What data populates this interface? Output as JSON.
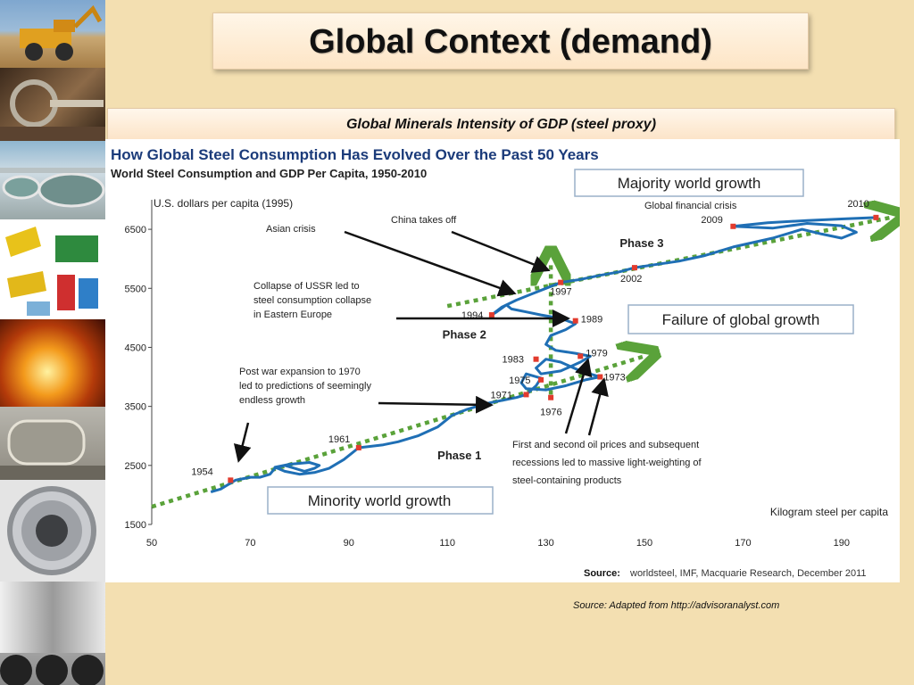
{
  "slide": {
    "title": "Global Context (demand)",
    "subtitle": "Global Minerals Intensity of GDP (steel proxy)",
    "source_note": "Source: Adapted from http://advisoranalyst.com"
  },
  "sidebar": {
    "images": [
      "mining-truck-icon",
      "bucket-wheel-excavator-icon",
      "thickener-tanks-icon",
      "mineral-processing-equipment-icon",
      "molten-steel-icon",
      "grinding-mill-icon",
      "steel-coil-icon",
      "steel-pipes-icon"
    ]
  },
  "chart_data": {
    "type": "line",
    "title": "How Global Steel Consumption Has Evolved Over the Past 50 Years",
    "subtitle": "World Steel Consumption and GDP Per Capita, 1950-2010",
    "ylabel": "U.S. dollars per capita (1995)",
    "xlabel": "Kilogram steel per capita",
    "xlim": [
      50,
      200
    ],
    "ylim": [
      1500,
      7000
    ],
    "x_ticks": [
      "50",
      "70",
      "90",
      "110",
      "130",
      "150",
      "170",
      "190"
    ],
    "y_ticks": [
      "1500",
      "2500",
      "3500",
      "4500",
      "5500",
      "6500"
    ],
    "series": [
      {
        "color": "#1f6fb5",
        "points": [
          [
            62,
            2050
          ],
          [
            64,
            2100
          ],
          [
            65,
            2150
          ],
          [
            66,
            2200
          ],
          [
            67,
            2250
          ],
          [
            70,
            2300
          ],
          [
            72,
            2300
          ],
          [
            74,
            2350
          ],
          [
            75,
            2450
          ],
          [
            77,
            2500
          ],
          [
            79,
            2450
          ],
          [
            81,
            2400
          ],
          [
            83,
            2450
          ],
          [
            84,
            2500
          ],
          [
            82,
            2550
          ],
          [
            78,
            2520
          ],
          [
            75,
            2470
          ],
          [
            77,
            2400
          ],
          [
            80,
            2350
          ],
          [
            83,
            2380
          ],
          [
            86,
            2450
          ],
          [
            89,
            2600
          ],
          [
            92,
            2800
          ],
          [
            97,
            2850
          ],
          [
            100,
            2900
          ],
          [
            104,
            3000
          ],
          [
            108,
            3150
          ],
          [
            111,
            3350
          ],
          [
            114,
            3450
          ],
          [
            118,
            3550
          ],
          [
            121,
            3600
          ],
          [
            124,
            3650
          ],
          [
            126,
            3700
          ],
          [
            128,
            3850
          ],
          [
            129,
            3980
          ],
          [
            126,
            4050
          ],
          [
            125,
            3900
          ],
          [
            126,
            3800
          ],
          [
            130,
            3780
          ],
          [
            134,
            3850
          ],
          [
            138,
            3950
          ],
          [
            141,
            4000
          ],
          [
            137,
            4100
          ],
          [
            133,
            4250
          ],
          [
            130,
            4300
          ],
          [
            128,
            4150
          ],
          [
            129,
            4050
          ],
          [
            133,
            4100
          ],
          [
            137,
            4250
          ],
          [
            139,
            4350
          ],
          [
            136,
            4400
          ],
          [
            132,
            4450
          ],
          [
            130,
            4550
          ],
          [
            131,
            4700
          ],
          [
            134,
            4800
          ],
          [
            136,
            4900
          ],
          [
            133,
            4990
          ],
          [
            129,
            5050
          ],
          [
            126,
            5100
          ],
          [
            123,
            5150
          ],
          [
            122,
            5220
          ],
          [
            120,
            5100
          ],
          [
            119,
            5050
          ],
          [
            121,
            5180
          ],
          [
            124,
            5300
          ],
          [
            127,
            5400
          ],
          [
            130,
            5500
          ],
          [
            133,
            5600
          ],
          [
            137,
            5650
          ],
          [
            141,
            5720
          ],
          [
            145,
            5780
          ],
          [
            148,
            5850
          ],
          [
            152,
            5900
          ],
          [
            157,
            5960
          ],
          [
            162,
            6050
          ],
          [
            168,
            6200
          ],
          [
            176,
            6350
          ],
          [
            182,
            6500
          ],
          [
            186,
            6420
          ],
          [
            190,
            6350
          ],
          [
            193,
            6450
          ],
          [
            190,
            6560
          ],
          [
            183,
            6600
          ],
          [
            176,
            6520
          ],
          [
            168,
            6550
          ],
          [
            175,
            6610
          ],
          [
            183,
            6650
          ],
          [
            191,
            6680
          ],
          [
            197,
            6700
          ]
        ]
      }
    ],
    "year_labels": [
      {
        "label": "1954",
        "x": 66,
        "y": 2250
      },
      {
        "label": "1961",
        "x": 92,
        "y": 2800
      },
      {
        "label": "1971",
        "x": 126,
        "y": 3700
      },
      {
        "label": "1975",
        "x": 129,
        "y": 3950
      },
      {
        "label": "1973",
        "x": 141,
        "y": 4000
      },
      {
        "label": "1976",
        "x": 131,
        "y": 3650
      },
      {
        "label": "1983",
        "x": 128,
        "y": 4300
      },
      {
        "label": "1979",
        "x": 137,
        "y": 4350
      },
      {
        "label": "1989",
        "x": 136,
        "y": 4950
      },
      {
        "label": "1994",
        "x": 119,
        "y": 5050
      },
      {
        "label": "1997",
        "x": 133,
        "y": 5600
      },
      {
        "label": "2002",
        "x": 148,
        "y": 5850
      },
      {
        "label": "2009",
        "x": 168,
        "y": 6550
      },
      {
        "label": "2010",
        "x": 197,
        "y": 6700
      }
    ],
    "trend_lines": [
      {
        "from": [
          50,
          1800
        ],
        "to": [
          150,
          4350
        ]
      },
      {
        "from": [
          110,
          5200
        ],
        "to": [
          200,
          6700
        ]
      },
      {
        "from": [
          131,
          3700
        ],
        "to": [
          131,
          5950
        ]
      }
    ],
    "phase_labels": [
      {
        "label": "Phase 1",
        "x": 108,
        "y": 2600
      },
      {
        "label": "Phase 2",
        "x": 109,
        "y": 4650
      },
      {
        "label": "Phase 3",
        "x": 145,
        "y": 6200
      }
    ],
    "callouts": [
      {
        "text": "Majority world growth"
      },
      {
        "text": "Failure of global growth"
      },
      {
        "text": "Minority world growth"
      }
    ],
    "annotations": {
      "asian_crisis": "Asian crisis",
      "china": "China takes off",
      "gfc": "Global financial crisis",
      "ussr": [
        "Collapse of USSR led to",
        "steel consumption collapse",
        "in Eastern Europe"
      ],
      "postwar": [
        "Post war expansion to 1970",
        "led to predictions of seemingly",
        "endless growth"
      ],
      "oil": [
        "First and second oil prices and subsequent",
        "recessions led to massive light-weighting of",
        "steel-containing products"
      ]
    },
    "source": {
      "label": "Source:",
      "text": "worldsteel, IMF, Macquarie Research, December 2011"
    }
  }
}
